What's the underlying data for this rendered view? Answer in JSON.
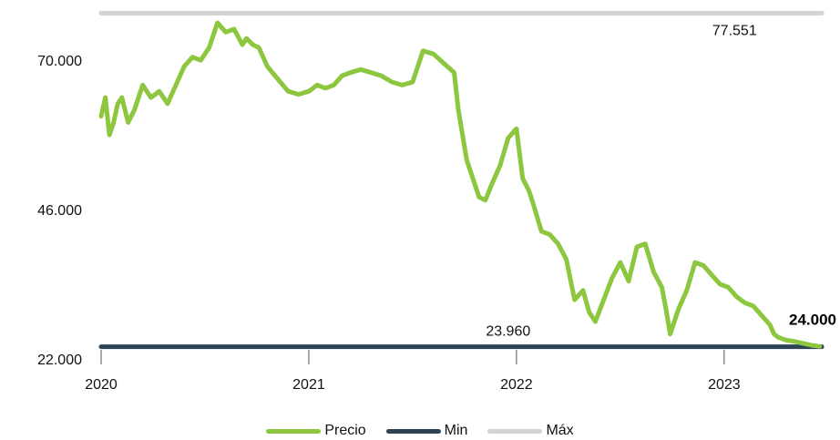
{
  "chart_data": {
    "type": "line",
    "title": "",
    "xlabel": "",
    "ylabel": "",
    "y_ticks": [
      "22.000",
      "46.000",
      "70.000"
    ],
    "y_tick_values": [
      22000,
      46000,
      70000
    ],
    "x_ticks": [
      "2020",
      "2021",
      "2022",
      "2023"
    ],
    "x_tick_values": [
      2020.0,
      2021.0,
      2022.0,
      2023.0
    ],
    "xlim": [
      2020.0,
      2023.47
    ],
    "ylim": [
      22000,
      78500
    ],
    "grid": false,
    "legend_position": "bottom",
    "series": [
      {
        "name": "Precio",
        "color": "#8dc63f",
        "x": [
          2020.0,
          2020.02,
          2020.04,
          2020.06,
          2020.08,
          2020.1,
          2020.13,
          2020.16,
          2020.2,
          2020.24,
          2020.28,
          2020.32,
          2020.36,
          2020.4,
          2020.44,
          2020.48,
          2020.52,
          2020.56,
          2020.6,
          2020.64,
          2020.68,
          2020.7,
          2020.73,
          2020.76,
          2020.8,
          2020.85,
          2020.9,
          2020.95,
          2021.0,
          2021.04,
          2021.08,
          2021.12,
          2021.16,
          2021.2,
          2021.25,
          2021.3,
          2021.35,
          2021.4,
          2021.45,
          2021.5,
          2021.55,
          2021.6,
          2021.65,
          2021.7,
          2021.72,
          2021.76,
          2021.8,
          2021.82,
          2021.85,
          2021.88,
          2021.92,
          2021.96,
          2022.0,
          2022.03,
          2022.06,
          2022.08,
          2022.12,
          2022.16,
          2022.2,
          2022.24,
          2022.28,
          2022.32,
          2022.35,
          2022.38,
          2022.42,
          2022.46,
          2022.5,
          2022.54,
          2022.58,
          2022.62,
          2022.66,
          2022.7,
          2022.72,
          2022.74,
          2022.78,
          2022.82,
          2022.86,
          2022.9,
          2022.94,
          2022.98,
          2023.02,
          2023.06,
          2023.1,
          2023.14,
          2023.18,
          2023.22,
          2023.24,
          2023.26,
          2023.3,
          2023.34,
          2023.38,
          2023.42,
          2023.46
        ],
        "values": [
          61000,
          64000,
          58000,
          60000,
          63000,
          64000,
          60000,
          62000,
          66000,
          64000,
          65000,
          63000,
          66000,
          69000,
          70500,
          70000,
          72000,
          76000,
          74500,
          75000,
          72500,
          73500,
          72500,
          72000,
          69000,
          67000,
          65000,
          64500,
          65000,
          66000,
          65500,
          66000,
          67500,
          68000,
          68500,
          68000,
          67500,
          66500,
          66000,
          66500,
          71500,
          71000,
          69500,
          68000,
          62000,
          54000,
          50000,
          48000,
          47500,
          50000,
          53000,
          57500,
          59000,
          51000,
          49000,
          47000,
          42500,
          42000,
          40500,
          38000,
          31500,
          33000,
          29500,
          28000,
          31500,
          35000,
          37500,
          34500,
          40000,
          40500,
          36000,
          33500,
          30000,
          26000,
          30000,
          33000,
          37500,
          37000,
          35500,
          34000,
          33500,
          32000,
          31000,
          30500,
          29000,
          27500,
          26000,
          25500,
          25000,
          24800,
          24500,
          24200,
          24000
        ]
      },
      {
        "name": "Min",
        "color": "#2c4356",
        "x": [
          2020.0,
          2023.47
        ],
        "values": [
          23960,
          23960
        ]
      },
      {
        "name": "Máx",
        "color": "#d3d3d3",
        "x": [
          2020.0,
          2023.47
        ],
        "values": [
          77551,
          77551
        ]
      }
    ],
    "annotations": [
      {
        "text": "77.551",
        "x": 2023.05,
        "y": 77551
      },
      {
        "text": "23.960",
        "x": 2021.96,
        "y": 23960
      },
      {
        "text": "24.000",
        "x": 2023.47,
        "y": 24000,
        "bold": true
      }
    ]
  }
}
